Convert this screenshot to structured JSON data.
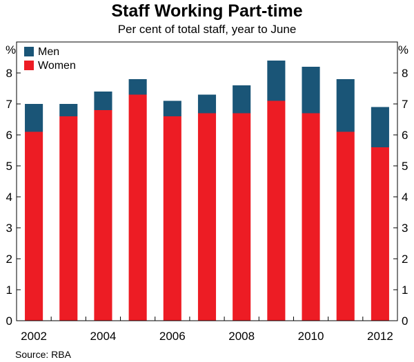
{
  "chart_data": {
    "type": "bar",
    "stacked": true,
    "title": "Staff Working Part-time",
    "subtitle": "Per cent of total staff, year to June",
    "y_unit_left": "%",
    "y_unit_right": "%",
    "ylim": [
      0,
      9
    ],
    "yticks": [
      0,
      1,
      2,
      3,
      4,
      5,
      6,
      7,
      8
    ],
    "categories": [
      "2002",
      "2003",
      "2004",
      "2005",
      "2006",
      "2007",
      "2008",
      "2009",
      "2010",
      "2011",
      "2012"
    ],
    "x_tick_labels": [
      "2002",
      "2004",
      "2006",
      "2008",
      "2010",
      "2012"
    ],
    "series": [
      {
        "name": "Women",
        "color": "#ed1c24",
        "values": [
          6.1,
          6.6,
          6.8,
          7.3,
          6.6,
          6.7,
          6.7,
          7.1,
          6.7,
          6.1,
          5.6
        ]
      },
      {
        "name": "Men",
        "color": "#1a5577",
        "values": [
          0.9,
          0.4,
          0.6,
          0.5,
          0.5,
          0.6,
          0.9,
          1.3,
          1.5,
          1.7,
          1.3
        ]
      }
    ],
    "legend": {
      "placement": "top-left",
      "order": [
        "Men",
        "Women"
      ]
    },
    "grid": false,
    "source": "Source: RBA"
  }
}
